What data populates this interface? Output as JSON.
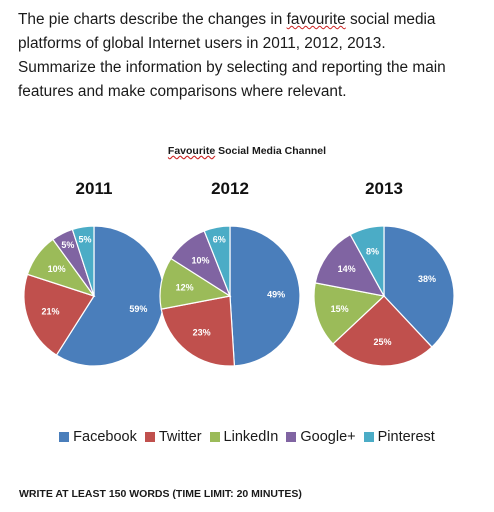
{
  "prompt": {
    "line1_pre": "The pie charts describe the changes in ",
    "line1_fav": "favourite",
    "line1_post": " social media",
    "line2": "platforms of global Internet users in 2011, 2012, 2013.",
    "line3": "Summarize the information by selecting and reporting the main",
    "line4": "features and make comparisons where relevant."
  },
  "colors": {
    "Facebook": "#4a7ebb",
    "Twitter": "#c0504d",
    "LinkedIn": "#9bbb59",
    "Google+": "#8064a2",
    "Pinterest": "#4bacc6"
  },
  "chart_data": {
    "type": "pie",
    "title_pre": "",
    "title_fav": "Favourite",
    "title_post": " Social Media Channel",
    "categories": [
      "Facebook",
      "Twitter",
      "LinkedIn",
      "Google+",
      "Pinterest"
    ],
    "pies": [
      {
        "label": "2011",
        "values": [
          59,
          21,
          10,
          5,
          5
        ],
        "value_labels": [
          "59%",
          "21%",
          "10%",
          "5%",
          "5%"
        ]
      },
      {
        "label": "2012",
        "values": [
          49,
          23,
          12,
          10,
          6
        ],
        "value_labels": [
          "49%",
          "23%",
          "12%",
          "10%",
          "6%"
        ]
      },
      {
        "label": "2013",
        "values": [
          38,
          25,
          15,
          14,
          8
        ],
        "value_labels": [
          "38%",
          "25%",
          "15%",
          "14%",
          "8%"
        ]
      }
    ],
    "legend_position": "bottom"
  },
  "footer": "WRITE AT LEAST 150 WORDS (TIME LIMIT: 20 MINUTES)"
}
